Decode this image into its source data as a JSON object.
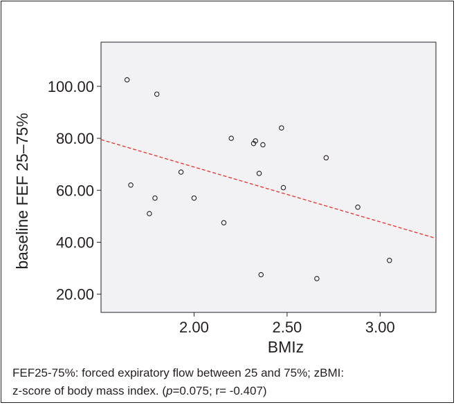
{
  "chart_data": {
    "type": "scatter",
    "title": "",
    "xlabel": "BMIz",
    "ylabel": "baseline FEF 25–75%",
    "xlim": [
      1.5,
      3.3
    ],
    "ylim": [
      13,
      117
    ],
    "x_ticks": [
      2.0,
      2.5,
      3.0
    ],
    "x_tick_labels": [
      "2.00",
      "2.50",
      "3.00"
    ],
    "y_ticks": [
      20,
      40,
      60,
      80,
      100
    ],
    "y_tick_labels": [
      "20.00",
      "40.00",
      "60.00",
      "80.00",
      "100.00"
    ],
    "grid": false,
    "legend": false,
    "points": [
      {
        "x": 1.64,
        "y": 102.5
      },
      {
        "x": 1.8,
        "y": 97.0
      },
      {
        "x": 1.66,
        "y": 62.0
      },
      {
        "x": 1.76,
        "y": 51.0
      },
      {
        "x": 1.79,
        "y": 57.0
      },
      {
        "x": 1.93,
        "y": 67.0
      },
      {
        "x": 2.0,
        "y": 57.0
      },
      {
        "x": 2.16,
        "y": 47.5
      },
      {
        "x": 2.2,
        "y": 80.0
      },
      {
        "x": 2.32,
        "y": 78.0
      },
      {
        "x": 2.33,
        "y": 79.0
      },
      {
        "x": 2.35,
        "y": 66.5
      },
      {
        "x": 2.36,
        "y": 27.5
      },
      {
        "x": 2.37,
        "y": 77.5
      },
      {
        "x": 2.47,
        "y": 84.0
      },
      {
        "x": 2.48,
        "y": 61.0
      },
      {
        "x": 2.66,
        "y": 26.0
      },
      {
        "x": 2.71,
        "y": 72.5
      },
      {
        "x": 2.88,
        "y": 53.5
      },
      {
        "x": 3.05,
        "y": 33.0
      }
    ],
    "fit_line": {
      "style": "dashed",
      "color": "#e8302a",
      "x": [
        1.5,
        3.3
      ],
      "y": [
        79.5,
        41.5
      ]
    },
    "colors": {
      "axes": "#231f20",
      "plot_background": "#f2f2f4",
      "points": "#231f20"
    }
  },
  "caption": {
    "line1_pre": "FEF25-75%: forced expiratory flow between 25 and 75%; zBMI:",
    "line2_pre": "z-score of body mass index. (",
    "p_symbol": "p",
    "line2_post": "=0.075; r= -0.407)"
  }
}
